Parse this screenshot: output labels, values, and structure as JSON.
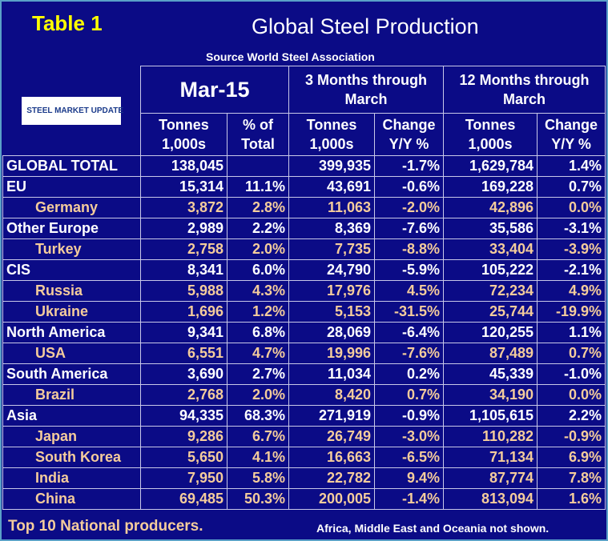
{
  "header": {
    "label": "Table 1",
    "title": "Global Steel Production",
    "source": "Source World Steel Association",
    "logo": "STEEL MARKET UPDATE",
    "period": "Mar-15",
    "group_3m": [
      "3 Months through",
      "March"
    ],
    "group_12m": [
      "12 Months through",
      "March"
    ]
  },
  "columns": [
    [
      "Tonnes",
      "1,000s"
    ],
    [
      "% of",
      "Total"
    ],
    [
      "Tonnes",
      "1,000s"
    ],
    [
      "Change",
      "Y/Y %"
    ],
    [
      "Tonnes",
      "1,000s"
    ],
    [
      "Change",
      "Y/Y %"
    ]
  ],
  "rows": [
    {
      "name": "GLOBAL TOTAL",
      "country": false,
      "cells": [
        "138,045",
        "",
        "399,935",
        "-1.7%",
        "1,629,784",
        "1.4%"
      ]
    },
    {
      "name": "EU",
      "country": false,
      "cells": [
        "15,314",
        "11.1%",
        "43,691",
        "-0.6%",
        "169,228",
        "0.7%"
      ]
    },
    {
      "name": "Germany",
      "country": true,
      "cells": [
        "3,872",
        "2.8%",
        "11,063",
        "-2.0%",
        "42,896",
        "0.0%"
      ]
    },
    {
      "name": "Other Europe",
      "country": false,
      "cells": [
        "2,989",
        "2.2%",
        "8,369",
        "-7.6%",
        "35,586",
        "-3.1%"
      ]
    },
    {
      "name": "Turkey",
      "country": true,
      "cells": [
        "2,758",
        "2.0%",
        "7,735",
        "-8.8%",
        "33,404",
        "-3.9%"
      ]
    },
    {
      "name": "CIS",
      "country": false,
      "cells": [
        "8,341",
        "6.0%",
        "24,790",
        "-5.9%",
        "105,222",
        "-2.1%"
      ]
    },
    {
      "name": "Russia",
      "country": true,
      "cells": [
        "5,988",
        "4.3%",
        "17,976",
        "4.5%",
        "72,234",
        "4.9%"
      ]
    },
    {
      "name": "Ukraine",
      "country": true,
      "cells": [
        "1,696",
        "1.2%",
        "5,153",
        "-31.5%",
        "25,744",
        "-19.9%"
      ]
    },
    {
      "name": "North America",
      "country": false,
      "cells": [
        "9,341",
        "6.8%",
        "28,069",
        "-6.4%",
        "120,255",
        "1.1%"
      ]
    },
    {
      "name": "USA",
      "country": true,
      "cells": [
        "6,551",
        "4.7%",
        "19,996",
        "-7.6%",
        "87,489",
        "0.7%"
      ]
    },
    {
      "name": "South America",
      "country": false,
      "cells": [
        "3,690",
        "2.7%",
        "11,034",
        "0.2%",
        "45,339",
        "-1.0%"
      ]
    },
    {
      "name": "Brazil",
      "country": true,
      "cells": [
        "2,768",
        "2.0%",
        "8,420",
        "0.7%",
        "34,190",
        "0.0%"
      ]
    },
    {
      "name": "Asia",
      "country": false,
      "cells": [
        "94,335",
        "68.3%",
        "271,919",
        "-0.9%",
        "1,105,615",
        "2.2%"
      ]
    },
    {
      "name": "Japan",
      "country": true,
      "cells": [
        "9,286",
        "6.7%",
        "26,749",
        "-3.0%",
        "110,282",
        "-0.9%"
      ]
    },
    {
      "name": "South Korea",
      "country": true,
      "cells": [
        "5,650",
        "4.1%",
        "16,663",
        "-6.5%",
        "71,134",
        "6.9%"
      ]
    },
    {
      "name": "India",
      "country": true,
      "cells": [
        "7,950",
        "5.8%",
        "22,782",
        "9.4%",
        "87,774",
        "7.8%"
      ]
    },
    {
      "name": "China",
      "country": true,
      "cells": [
        "69,485",
        "50.3%",
        "200,005",
        "-1.4%",
        "813,094",
        "1.6%"
      ]
    }
  ],
  "footer": {
    "left": "Top 10 National producers.",
    "right": "Africa, Middle East and Oceania not shown."
  }
}
